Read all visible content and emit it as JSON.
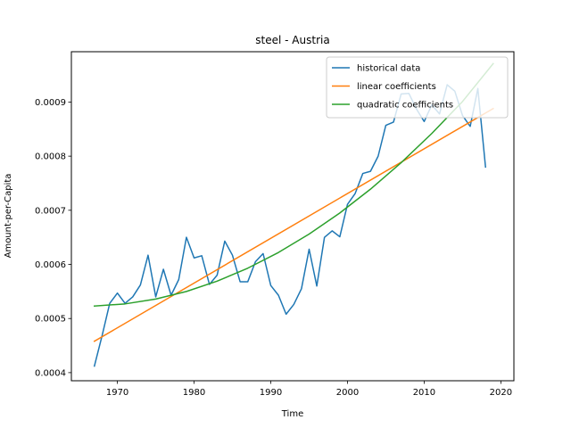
{
  "chart_data": {
    "type": "line",
    "title": "steel - Austria",
    "xlabel": "Time",
    "ylabel": "Amount-per-Capita",
    "xlim": [
      1964,
      2021.7
    ],
    "ylim": [
      0.000385,
      0.000993
    ],
    "xticks": [
      1970,
      1980,
      1990,
      2000,
      2010,
      2020
    ],
    "xtick_labels": [
      "1970",
      "1980",
      "1990",
      "2000",
      "2010",
      "2020"
    ],
    "yticks": [
      0.0004,
      0.0005,
      0.0006,
      0.0007,
      0.0008,
      0.0009
    ],
    "ytick_labels": [
      "0.0004",
      "0.0005",
      "0.0006",
      "0.0007",
      "0.0008",
      "0.0009"
    ],
    "grid": false,
    "legend_position": "top-right",
    "series": [
      {
        "name": "historical data",
        "color": "#1f77b4",
        "x": [
          1967,
          1968,
          1969,
          1970,
          1971,
          1972,
          1973,
          1974,
          1975,
          1976,
          1977,
          1978,
          1979,
          1980,
          1981,
          1982,
          1983,
          1984,
          1985,
          1986,
          1987,
          1988,
          1989,
          1990,
          1991,
          1992,
          1993,
          1994,
          1995,
          1996,
          1997,
          1998,
          1999,
          2000,
          2001,
          2002,
          2003,
          2004,
          2005,
          2006,
          2007,
          2008,
          2009,
          2010,
          2011,
          2012,
          2013,
          2014,
          2015,
          2016,
          2017,
          2018
        ],
        "values": [
          0.000412,
          0.000468,
          0.000528,
          0.000547,
          0.000528,
          0.00054,
          0.000562,
          0.000617,
          0.00054,
          0.000591,
          0.000543,
          0.000572,
          0.00065,
          0.000612,
          0.000616,
          0.000563,
          0.00058,
          0.000643,
          0.000617,
          0.000568,
          0.000568,
          0.000605,
          0.00062,
          0.000561,
          0.000543,
          0.000508,
          0.000526,
          0.000555,
          0.000628,
          0.00056,
          0.00065,
          0.000662,
          0.000651,
          0.000711,
          0.000731,
          0.000768,
          0.000772,
          0.0008,
          0.000857,
          0.000863,
          0.000915,
          0.000916,
          0.000887,
          0.000864,
          0.000895,
          0.000878,
          0.000932,
          0.00092,
          0.000875,
          0.000855,
          0.000925,
          0.00078
        ]
      },
      {
        "name": "linear coefficients",
        "color": "#ff7f0e",
        "x": [
          1967,
          2019
        ],
        "values": [
          0.000458,
          0.000888
        ]
      },
      {
        "name": "quadratic coefficients",
        "color": "#2ca02c",
        "x": [
          1967,
          1971,
          1975,
          1979,
          1983,
          1987,
          1991,
          1995,
          1999,
          2003,
          2007,
          2011,
          2015,
          2019
        ],
        "values": [
          0.000523,
          0.000527,
          0.000536,
          0.00055,
          0.000569,
          0.000593,
          0.000622,
          0.000656,
          0.000695,
          0.000739,
          0.000788,
          0.000842,
          0.000901,
          0.000971
        ]
      }
    ]
  }
}
